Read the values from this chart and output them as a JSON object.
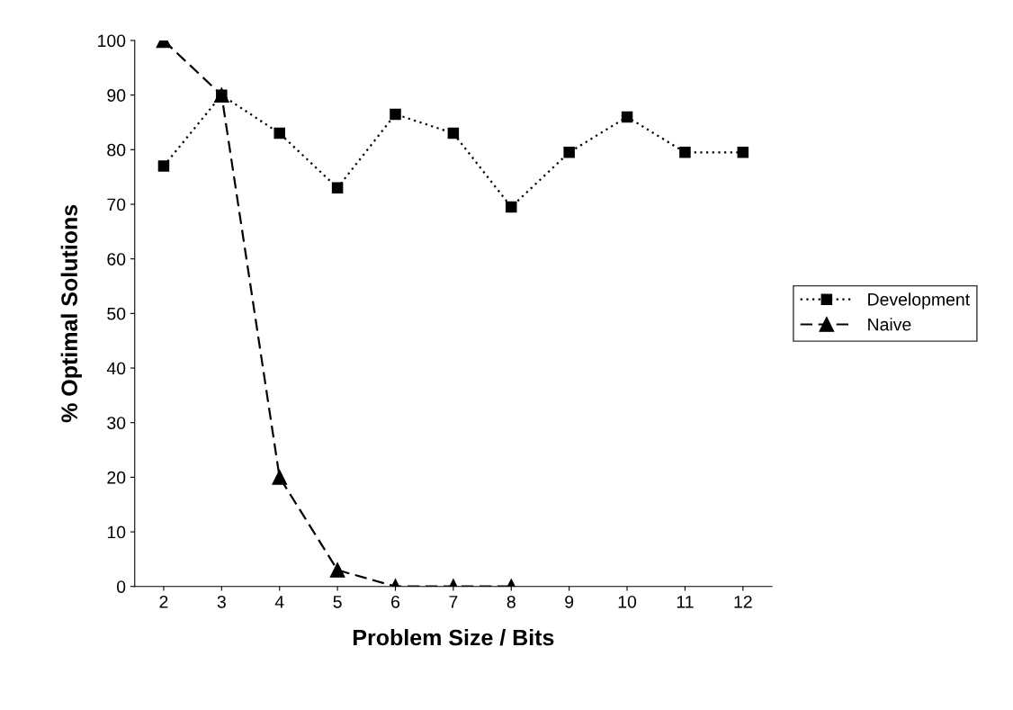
{
  "chart_data": {
    "type": "line",
    "xlabel": "Problem Size / Bits",
    "ylabel": "% Optimal Solutions",
    "categories": [
      "2",
      "3",
      "4",
      "5",
      "6",
      "7",
      "8",
      "9",
      "10",
      "11",
      "12"
    ],
    "series": [
      {
        "name": "Development",
        "color": "#000000",
        "marker": "square",
        "line_style": "dotted",
        "values": [
          77,
          90,
          83,
          73,
          86.5,
          83,
          69.5,
          79.5,
          86,
          79.5,
          79.5
        ]
      },
      {
        "name": "Naive",
        "color": "#000000",
        "marker": "triangle",
        "line_style": "dashed",
        "values": [
          100,
          90,
          20,
          3,
          0,
          0,
          0,
          null,
          null,
          null,
          null
        ]
      }
    ],
    "ylim": [
      0,
      100
    ],
    "yticks": [
      0,
      10,
      20,
      30,
      40,
      50,
      60,
      70,
      80,
      90,
      100
    ],
    "grid": false,
    "legend": "right"
  }
}
